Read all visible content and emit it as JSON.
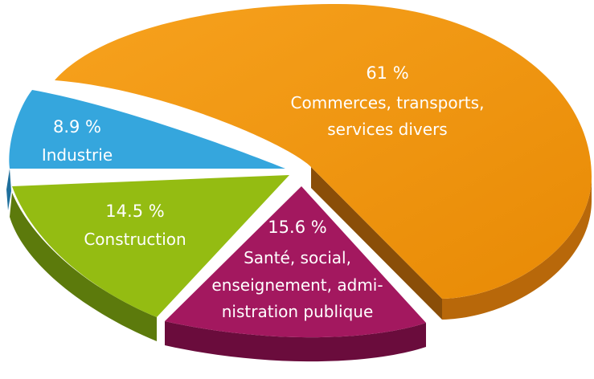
{
  "chart_data": {
    "type": "pie",
    "title": "",
    "categories": [
      "Commerces, transports, services divers",
      "Santé, social, enseignement, administration publique",
      "Construction",
      "Industrie"
    ],
    "values": [
      61,
      15.6,
      14.5,
      8.9
    ],
    "unit": "%",
    "slices": [
      {
        "value_text": "61 %",
        "label_lines": [
          "Commerces, transports,",
          "services divers"
        ],
        "color": "#f0960a",
        "side_color": "#b8680a"
      },
      {
        "value_text": "15.6 %",
        "label_lines": [
          "Santé, social,",
          "enseignement, admi-",
          "nistration publique"
        ],
        "color": "#a3185f",
        "side_color": "#6a0c3c"
      },
      {
        "value_text": "14.5 %",
        "label_lines": [
          "Construction"
        ],
        "color": "#94bc12",
        "side_color": "#5c7a0c"
      },
      {
        "value_text": "8.9 %",
        "label_lines": [
          "Industrie"
        ],
        "color": "#35a6dd",
        "side_color": "#1f6f9c"
      }
    ],
    "legend": "none",
    "grid": false
  }
}
